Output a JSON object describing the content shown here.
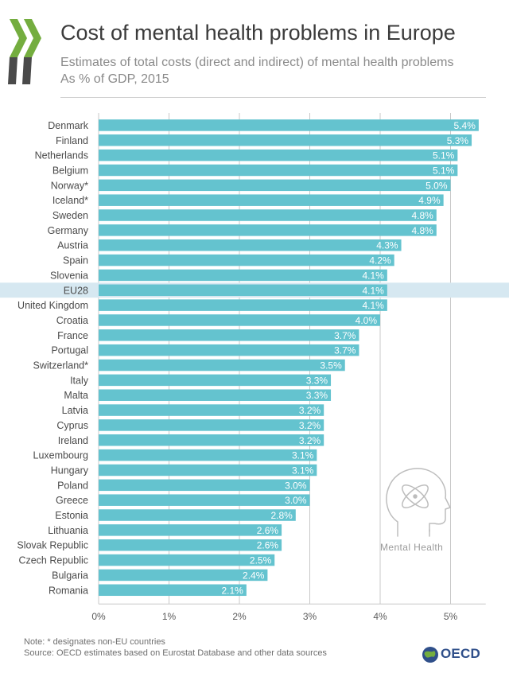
{
  "header": {
    "title": "Cost of mental health problems in Europe",
    "subtitle_line1": "Estimates of total costs (direct and indirect) of mental health problems",
    "subtitle_line2": "As % of GDP, 2015"
  },
  "colors": {
    "bar": "#64c3cf",
    "highlight_band": "#d6e8f1",
    "logo_green": "#74ad3f",
    "logo_dark": "#4a4a4a",
    "axis_grid": "#c8c8c8"
  },
  "chart_data": {
    "type": "bar",
    "orientation": "horizontal",
    "categories": [
      "Denmark",
      "Finland",
      "Netherlands",
      "Belgium",
      "Norway*",
      "Iceland*",
      "Sweden",
      "Germany",
      "Austria",
      "Spain",
      "Slovenia",
      "EU28",
      "United Kingdom",
      "Croatia",
      "France",
      "Portugal",
      "Switzerland*",
      "Italy",
      "Malta",
      "Latvia",
      "Cyprus",
      "Ireland",
      "Luxembourg",
      "Hungary",
      "Poland",
      "Greece",
      "Estonia",
      "Lithuania",
      "Slovak Republic",
      "Czech Republic",
      "Bulgaria",
      "Romania"
    ],
    "values": [
      5.4,
      5.3,
      5.1,
      5.1,
      5.0,
      4.9,
      4.8,
      4.8,
      4.3,
      4.2,
      4.1,
      4.1,
      4.1,
      4.0,
      3.7,
      3.7,
      3.5,
      3.3,
      3.3,
      3.2,
      3.2,
      3.2,
      3.1,
      3.1,
      3.0,
      3.0,
      2.8,
      2.6,
      2.6,
      2.5,
      2.4,
      2.1
    ],
    "value_labels": [
      "5.4%",
      "5.3%",
      "5.1%",
      "5.1%",
      "5.0%",
      "4.9%",
      "4.8%",
      "4.8%",
      "4.3%",
      "4.2%",
      "4.1%",
      "4.1%",
      "4.1%",
      "4.0%",
      "3.7%",
      "3.7%",
      "3.5%",
      "3.3%",
      "3.3%",
      "3.2%",
      "3.2%",
      "3.2%",
      "3.1%",
      "3.1%",
      "3.0%",
      "3.0%",
      "2.8%",
      "2.6%",
      "2.6%",
      "2.5%",
      "2.4%",
      "2.1%"
    ],
    "highlight": "EU28",
    "xlim": [
      0,
      5.5
    ],
    "xticks": [
      0,
      1,
      2,
      3,
      4,
      5
    ],
    "xtick_labels": [
      "0%",
      "1%",
      "2%",
      "3%",
      "4%",
      "5%"
    ],
    "grid": true,
    "legend": "none"
  },
  "illustration": {
    "icon": "head-with-atom-icon",
    "label": "Mental Health"
  },
  "footer": {
    "note": "Note: * designates non-EU countries",
    "source": "Source: OECD estimates based on Eurostat Database and other data sources",
    "brand": "OECD"
  }
}
